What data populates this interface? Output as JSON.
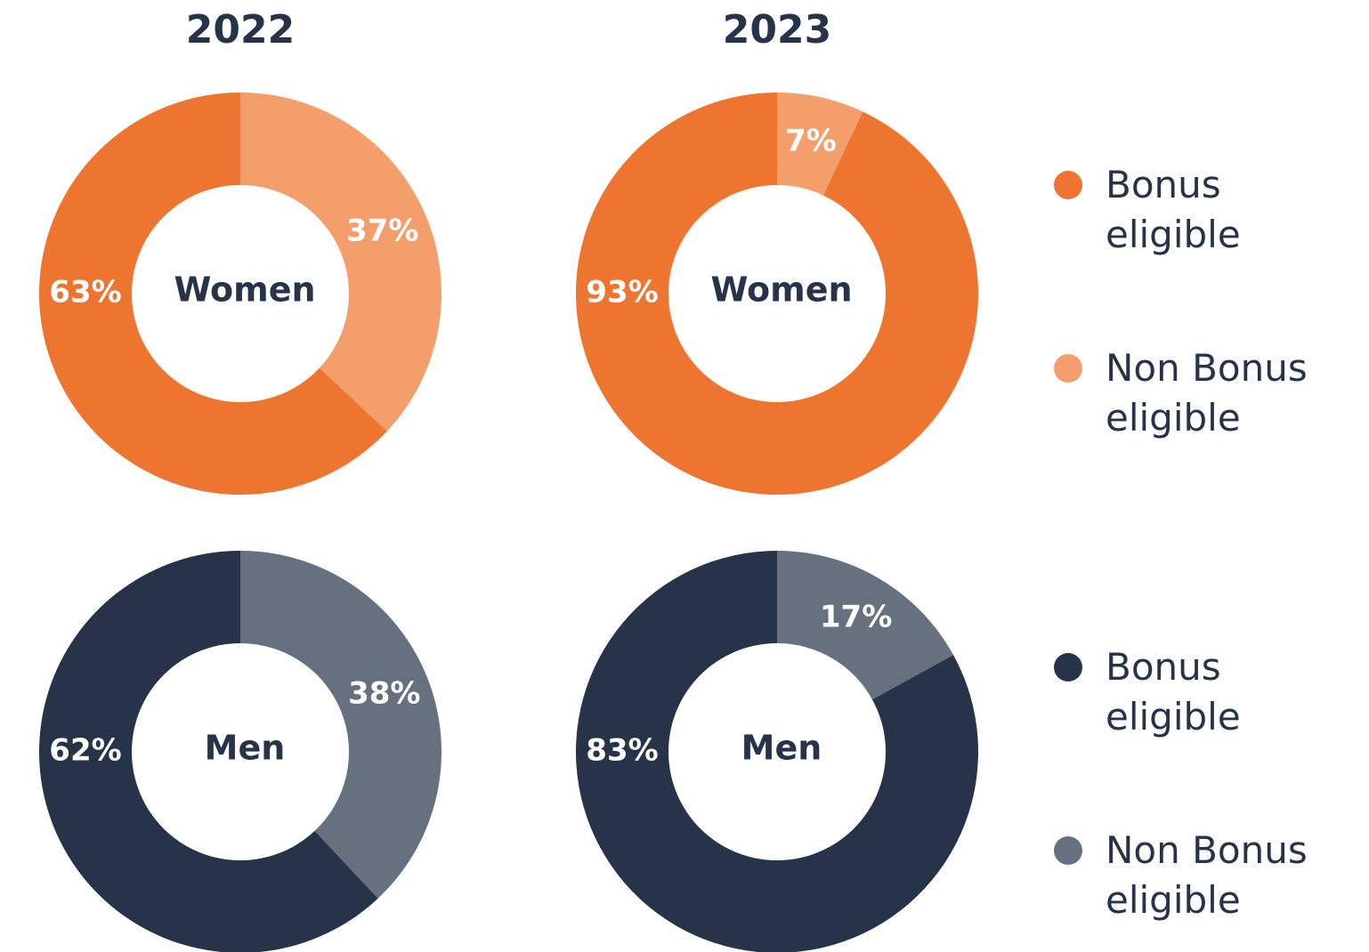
{
  "chart_data": [
    {
      "type": "donut",
      "title": "2022",
      "center_label": "Women",
      "values": [
        63,
        37
      ],
      "value_labels": [
        "63%",
        "37%"
      ],
      "colors": [
        "#ee752f",
        "#f39e6b"
      ]
    },
    {
      "type": "donut",
      "title": "2023",
      "center_label": "Women",
      "categories": [
        "Bonus eligible",
        "Non Bonus eligible"
      ],
      "values": [
        93,
        7
      ],
      "value_labels": [
        "93%",
        "7%"
      ],
      "colors": [
        "#ee752f",
        "#f39e6b"
      ]
    },
    {
      "type": "donut",
      "center_label": "Men",
      "values": [
        62,
        38
      ],
      "value_labels": [
        "62%",
        "38%"
      ],
      "colors": [
        "#263349",
        "#67707f"
      ]
    },
    {
      "type": "donut",
      "center_label": "Men",
      "categories": [
        "Bonus eligible",
        "Non Bonus eligible"
      ],
      "values": [
        83,
        17
      ],
      "value_labels": [
        "83%",
        "17%"
      ],
      "colors": [
        "#263349",
        "#67707f"
      ]
    }
  ]
}
